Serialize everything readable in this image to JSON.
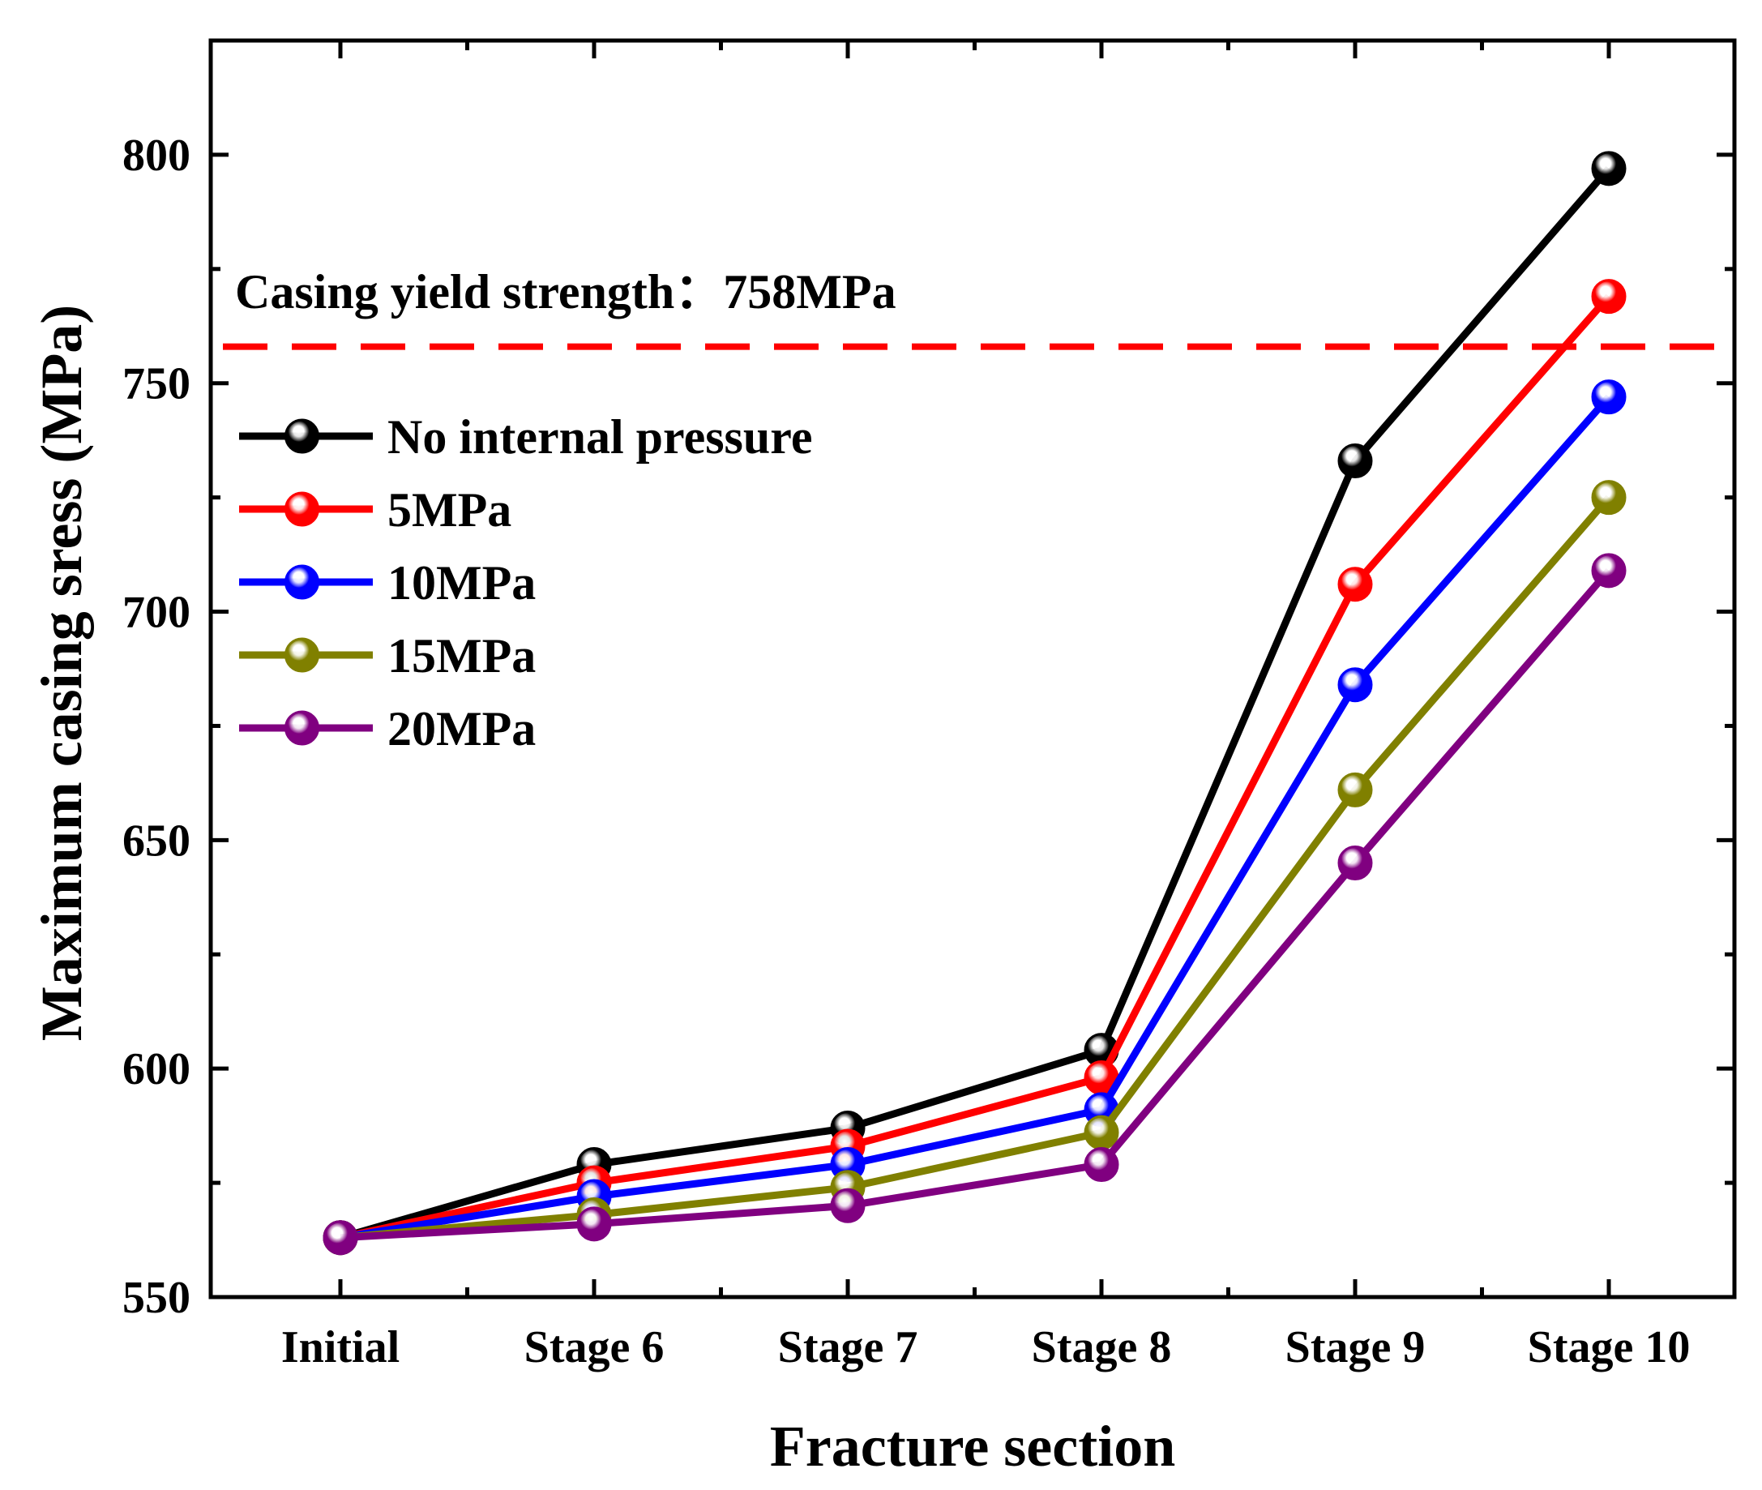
{
  "chart_data": {
    "type": "line",
    "xlabel": "Fracture section",
    "ylabel": "Maximum casing sress (MPa)",
    "categories": [
      "Initial",
      "Stage 6",
      "Stage 7",
      "Stage 8",
      "Stage 9",
      "Stage 10"
    ],
    "ylim": [
      550,
      825
    ],
    "yticks": [
      550,
      600,
      650,
      700,
      750,
      800
    ],
    "yticks_minor": [
      575,
      625,
      675,
      725,
      775,
      825
    ],
    "reference_line": {
      "value": 758,
      "color": "#ff0000",
      "style": "dashed"
    },
    "annotation": "Casing yield strength：758MPa",
    "legend_position": "top-left",
    "series": [
      {
        "name": "No internal pressure",
        "color": "#000000",
        "values": [
          563,
          579,
          587,
          604,
          733,
          797
        ]
      },
      {
        "name": "5MPa",
        "color": "#ff0000",
        "values": [
          563,
          575,
          583,
          598,
          706,
          769
        ]
      },
      {
        "name": "10MPa",
        "color": "#0000ff",
        "values": [
          563,
          572,
          579,
          591,
          684,
          747
        ]
      },
      {
        "name": "15MPa",
        "color": "#808000",
        "values": [
          563,
          568,
          574,
          586,
          661,
          725
        ]
      },
      {
        "name": "20MPa",
        "color": "#800080",
        "values": [
          563,
          566,
          570,
          579,
          645,
          709
        ]
      }
    ]
  }
}
